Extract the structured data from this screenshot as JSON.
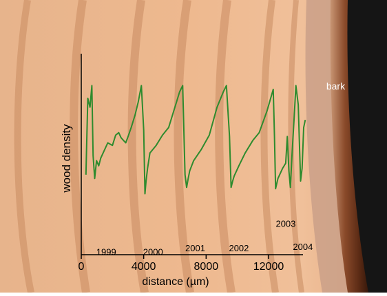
{
  "chart_data": {
    "type": "line",
    "title": "",
    "xlabel": "distance (µm)",
    "ylabel": "wood density",
    "xlim": [
      0,
      15000
    ],
    "xticks": [
      0,
      4000,
      8000,
      12000
    ],
    "grid": false,
    "series": [
      {
        "values_note": "",
        "color": "#2e8b2e",
        "x": [
          300,
          420,
          560,
          680,
          760,
          860,
          980,
          1120,
          1250,
          1400,
          1700,
          2000,
          2200,
          2400,
          2550,
          2700,
          2850,
          3000,
          3200,
          3450,
          3650,
          3850,
          4000,
          4080,
          4150,
          4250,
          4400,
          4800,
          5200,
          5600,
          6100,
          6300,
          6500,
          6650,
          6750,
          6850,
          6950,
          7200,
          7700,
          8200,
          8700,
          9100,
          9300,
          9500,
          9600,
          9700,
          9800,
          10100,
          10500,
          11000,
          11400,
          11900,
          12300,
          12380,
          12450,
          12600,
          12900,
          13100,
          13200,
          13300,
          13400,
          13500,
          13650,
          13750,
          13900,
          14050,
          14150,
          14250,
          14350
        ],
        "y": [
          0.25,
          0.85,
          0.78,
          0.95,
          0.4,
          0.22,
          0.36,
          0.32,
          0.38,
          0.42,
          0.5,
          0.48,
          0.56,
          0.58,
          0.54,
          0.52,
          0.5,
          0.55,
          0.62,
          0.72,
          0.82,
          0.95,
          0.6,
          0.1,
          0.2,
          0.3,
          0.42,
          0.48,
          0.56,
          0.62,
          0.82,
          0.9,
          0.95,
          0.25,
          0.15,
          0.22,
          0.28,
          0.36,
          0.45,
          0.56,
          0.78,
          0.9,
          0.95,
          0.55,
          0.15,
          0.2,
          0.24,
          0.32,
          0.42,
          0.52,
          0.58,
          0.75,
          0.92,
          0.55,
          0.14,
          0.22,
          0.3,
          0.34,
          0.55,
          0.28,
          0.15,
          0.4,
          0.72,
          0.95,
          0.8,
          0.2,
          0.3,
          0.62,
          0.68
        ]
      }
    ],
    "annotations": [
      {
        "text": "1999",
        "x": 1600,
        "y": -0.38
      },
      {
        "text": "2000",
        "x": 4600,
        "y": -0.38
      },
      {
        "text": "2001",
        "x": 7300,
        "y": -0.35
      },
      {
        "text": "2002",
        "x": 10100,
        "y": -0.35
      },
      {
        "text": "2003",
        "x": 13100,
        "y": -0.16
      },
      {
        "text": "2004",
        "x": 14200,
        "y": -0.34
      },
      {
        "text": "bark",
        "x": 16300,
        "y": 0.92
      }
    ],
    "y_axis_color": "#000000"
  }
}
